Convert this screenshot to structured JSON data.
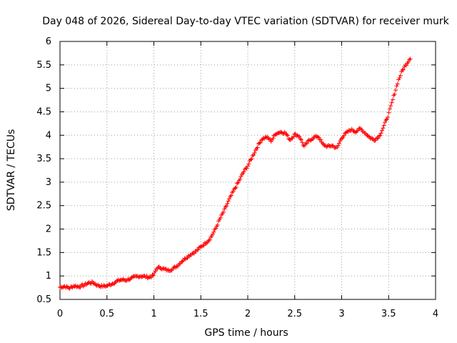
{
  "chart_data": {
    "type": "scatter",
    "title": "Day 048 of 2026, Sidereal Day-to-day VTEC variation (SDTVAR) for receiver murk",
    "xlabel": "GPS time / hours",
    "ylabel": "SDTVAR / TECUs",
    "xlim": [
      0,
      4
    ],
    "ylim": [
      0.5,
      6
    ],
    "xticks": [
      "0",
      "0.5",
      "1",
      "1.5",
      "2",
      "2.5",
      "3",
      "3.5",
      "4"
    ],
    "yticks": [
      "0.5",
      "1",
      "1.5",
      "2",
      "2.5",
      "3",
      "3.5",
      "4",
      "4.5",
      "5",
      "5.5",
      "6"
    ],
    "xtick_values": [
      0,
      0.5,
      1,
      1.5,
      2,
      2.5,
      3,
      3.5,
      4
    ],
    "ytick_values": [
      0.5,
      1,
      1.5,
      2,
      2.5,
      3,
      3.5,
      4,
      4.5,
      5,
      5.5,
      6
    ],
    "grid": true,
    "marker": "+",
    "color": "#ff0000",
    "series": [
      {
        "name": "SDTVAR",
        "x": [
          0.0,
          0.05,
          0.1,
          0.15,
          0.2,
          0.25,
          0.3,
          0.35,
          0.4,
          0.45,
          0.5,
          0.55,
          0.6,
          0.65,
          0.7,
          0.75,
          0.8,
          0.85,
          0.9,
          0.95,
          1.0,
          1.03,
          1.07,
          1.1,
          1.15,
          1.2,
          1.25,
          1.3,
          1.35,
          1.4,
          1.45,
          1.5,
          1.55,
          1.6,
          1.65,
          1.7,
          1.75,
          1.8,
          1.85,
          1.9,
          1.95,
          2.0,
          2.05,
          2.1,
          2.15,
          2.2,
          2.25,
          2.3,
          2.35,
          2.4,
          2.45,
          2.5,
          2.55,
          2.6,
          2.65,
          2.7,
          2.75,
          2.8,
          2.85,
          2.9,
          2.95,
          3.0,
          3.05,
          3.1,
          3.15,
          3.2,
          3.25,
          3.3,
          3.35,
          3.4,
          3.45,
          3.5,
          3.55,
          3.6,
          3.65,
          3.7,
          3.73
        ],
        "values": [
          0.76,
          0.78,
          0.74,
          0.79,
          0.77,
          0.8,
          0.85,
          0.86,
          0.8,
          0.78,
          0.79,
          0.83,
          0.88,
          0.92,
          0.91,
          0.94,
          0.98,
          1.0,
          0.99,
          0.97,
          1.02,
          1.17,
          1.18,
          1.15,
          1.12,
          1.15,
          1.22,
          1.32,
          1.4,
          1.47,
          1.53,
          1.62,
          1.7,
          1.8,
          1.98,
          2.2,
          2.4,
          2.62,
          2.82,
          3.0,
          3.2,
          3.35,
          3.55,
          3.75,
          3.92,
          3.96,
          3.88,
          4.04,
          4.07,
          4.05,
          3.9,
          4.02,
          3.98,
          3.76,
          3.88,
          3.95,
          3.98,
          3.8,
          3.76,
          3.78,
          3.72,
          3.95,
          4.05,
          4.12,
          4.08,
          4.14,
          4.05,
          3.95,
          3.9,
          3.98,
          4.2,
          4.45,
          4.8,
          5.15,
          5.4,
          5.55,
          5.65
        ]
      }
    ]
  }
}
